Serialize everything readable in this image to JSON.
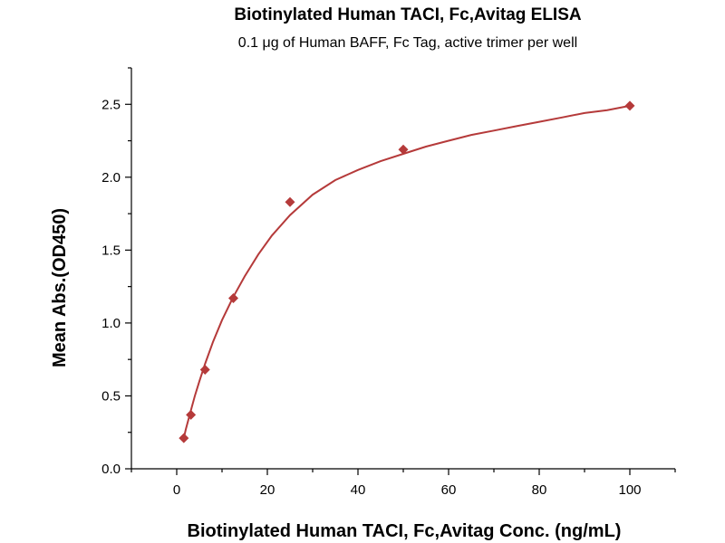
{
  "chart_data": {
    "type": "scatter",
    "title": "Biotinylated Human TACI, Fc,Avitag ELISA",
    "subtitle": "0.1 μg of Human BAFF, Fc Tag, active trimer per well",
    "xlabel": "Biotinylated Human TACI, Fc,Avitag Conc. (ng/mL)",
    "ylabel": "Mean Abs.(OD450)",
    "xlim": [
      -10,
      110
    ],
    "ylim": [
      0,
      2.75
    ],
    "xticks": [
      0,
      20,
      40,
      60,
      80,
      100
    ],
    "xtick_labels": [
      "0",
      "20",
      "40",
      "60",
      "80",
      "100"
    ],
    "yticks": [
      0.0,
      0.5,
      1.0,
      1.5,
      2.0,
      2.5
    ],
    "ytick_labels": [
      "0.0",
      "0.5",
      "1.0",
      "1.5",
      "2.0",
      "2.5"
    ],
    "grid": false,
    "legend": "none",
    "color": "#b53a3a",
    "series": [
      {
        "marker": "diamond",
        "x": [
          1.563,
          3.125,
          6.25,
          12.5,
          25,
          50,
          100
        ],
        "y": [
          0.21,
          0.37,
          0.68,
          1.17,
          1.83,
          2.19,
          2.49
        ]
      }
    ],
    "fit_curve": {
      "type": "4PL",
      "x": [
        1.563,
        2,
        3.125,
        4,
        5,
        6.25,
        8,
        10,
        12.5,
        15,
        18,
        21,
        25,
        30,
        35,
        40,
        45,
        50,
        55,
        60,
        65,
        70,
        75,
        80,
        85,
        90,
        95,
        100
      ],
      "y": [
        0.21,
        0.27,
        0.4,
        0.5,
        0.6,
        0.72,
        0.87,
        1.02,
        1.18,
        1.32,
        1.47,
        1.6,
        1.74,
        1.88,
        1.98,
        2.05,
        2.11,
        2.16,
        2.21,
        2.25,
        2.29,
        2.32,
        2.35,
        2.38,
        2.41,
        2.44,
        2.46,
        2.49
      ]
    }
  }
}
